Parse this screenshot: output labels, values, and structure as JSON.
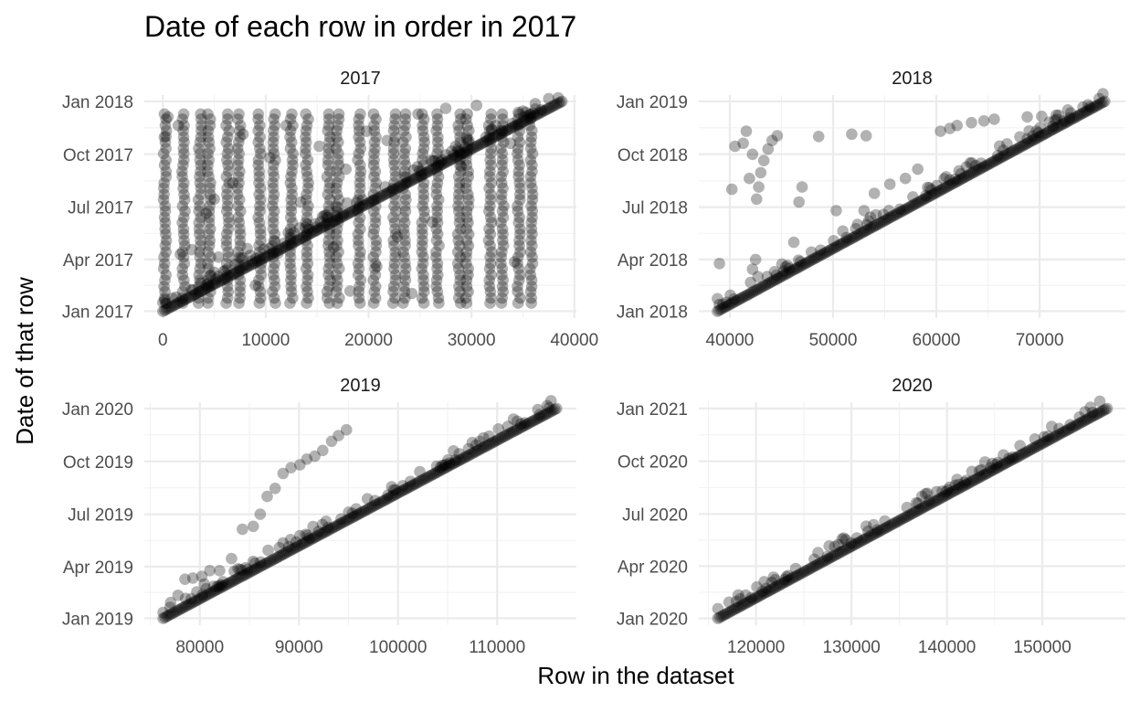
{
  "chart": {
    "title": "Date of each row in order in 2017",
    "xlabel": "Row in the dataset",
    "ylabel": "Date of that row"
  },
  "chart_data": [
    {
      "type": "scatter",
      "facet": "2017",
      "x_ticks": [
        0,
        10000,
        20000,
        30000,
        40000
      ],
      "x_tick_labels": [
        "0",
        "10000",
        "20000",
        "30000",
        "40000"
      ],
      "xlim": [
        -1800,
        40200
      ],
      "y_ticks": [
        "2017-01-01",
        "2017-04-01",
        "2017-07-01",
        "2017-10-01",
        "2018-01-01"
      ],
      "y_tick_labels": [
        "Jan 2017",
        "Apr 2017",
        "Jul 2017",
        "Oct 2017",
        "Jan 2018"
      ],
      "ylim": [
        "2016-12-20",
        "2018-01-12"
      ],
      "point_color": "#000000",
      "point_alpha": 0.3,
      "series": [
        {
          "x_start": 0,
          "y_start": "2017-01-01",
          "x_end": 38800,
          "y_end": "2018-01-01"
        }
      ],
      "column_stripes_x": [
        200,
        2000,
        3600,
        4500,
        6300,
        7400,
        9400,
        10800,
        12500,
        14000,
        16100,
        17000,
        19100,
        20600,
        22500,
        23500,
        25300,
        26700,
        28800,
        29600,
        31800,
        33000,
        34600,
        35800
      ],
      "column_top": "2017-12-01",
      "column_bottom": "2017-01-15",
      "outliers": [
        {
          "x": 300,
          "y": "2017-11-01"
        },
        {
          "x": 500,
          "y": "2017-12-05"
        },
        {
          "x": 1500,
          "y": "2017-11-20"
        },
        {
          "x": 1700,
          "y": "2017-04-10"
        },
        {
          "x": 2800,
          "y": "2017-04-18"
        },
        {
          "x": 4200,
          "y": "2017-06-20"
        },
        {
          "x": 5000,
          "y": "2017-07-15"
        },
        {
          "x": 5400,
          "y": "2017-04-05"
        },
        {
          "x": 7800,
          "y": "2017-11-05"
        },
        {
          "x": 8200,
          "y": "2017-04-20"
        },
        {
          "x": 10400,
          "y": "2017-09-25"
        },
        {
          "x": 11200,
          "y": "2017-04-12"
        },
        {
          "x": 12000,
          "y": "2017-11-20"
        },
        {
          "x": 13400,
          "y": "2017-07-10"
        },
        {
          "x": 15200,
          "y": "2017-10-15"
        },
        {
          "x": 16600,
          "y": "2017-04-22"
        },
        {
          "x": 17800,
          "y": "2017-09-05"
        },
        {
          "x": 18200,
          "y": "2017-02-05"
        },
        {
          "x": 19800,
          "y": "2017-11-10"
        },
        {
          "x": 20800,
          "y": "2017-03-20"
        },
        {
          "x": 21800,
          "y": "2017-10-25"
        },
        {
          "x": 22800,
          "y": "2017-05-10"
        },
        {
          "x": 24200,
          "y": "2017-02-01"
        },
        {
          "x": 24800,
          "y": "2017-12-10"
        },
        {
          "x": 26200,
          "y": "2017-06-05"
        },
        {
          "x": 27500,
          "y": "2017-12-20"
        },
        {
          "x": 29000,
          "y": "2017-09-10"
        },
        {
          "x": 30500,
          "y": "2017-12-25"
        },
        {
          "x": 32000,
          "y": "2017-11-12"
        },
        {
          "x": 33800,
          "y": "2017-10-20"
        },
        {
          "x": 35000,
          "y": "2017-12-15"
        },
        {
          "x": 36200,
          "y": "2017-12-28"
        },
        {
          "x": 34200,
          "y": "2017-03-28"
        },
        {
          "x": 6800,
          "y": "2017-08-12"
        },
        {
          "x": 9000,
          "y": "2017-02-15"
        },
        {
          "x": 14800,
          "y": "2017-06-02"
        }
      ]
    },
    {
      "type": "scatter",
      "facet": "2018",
      "x_ticks": [
        40000,
        50000,
        60000,
        70000
      ],
      "x_tick_labels": [
        "40000",
        "50000",
        "60000",
        "70000"
      ],
      "xlim": [
        37000,
        78300
      ],
      "y_ticks": [
        "2018-01-01",
        "2018-04-01",
        "2018-07-01",
        "2018-10-01",
        "2019-01-01"
      ],
      "y_tick_labels": [
        "Jan 2018",
        "Apr 2018",
        "Jul 2018",
        "Oct 2018",
        "Jan 2019"
      ],
      "ylim": [
        "2017-12-20",
        "2019-01-12"
      ],
      "point_color": "#000000",
      "point_alpha": 0.3,
      "series": [
        {
          "x_start": 38800,
          "y_start": "2018-01-01",
          "x_end": 76300,
          "y_end": "2019-01-01"
        }
      ],
      "outliers": [
        {
          "x": 39000,
          "y": "2018-03-25"
        },
        {
          "x": 40200,
          "y": "2018-08-01"
        },
        {
          "x": 40500,
          "y": "2018-10-15"
        },
        {
          "x": 41300,
          "y": "2018-10-20"
        },
        {
          "x": 41600,
          "y": "2018-11-10"
        },
        {
          "x": 41900,
          "y": "2018-08-20"
        },
        {
          "x": 42200,
          "y": "2018-10-01"
        },
        {
          "x": 42600,
          "y": "2018-07-15"
        },
        {
          "x": 42800,
          "y": "2018-08-05"
        },
        {
          "x": 42200,
          "y": "2018-03-15"
        },
        {
          "x": 42500,
          "y": "2018-04-01"
        },
        {
          "x": 43000,
          "y": "2018-08-30"
        },
        {
          "x": 43300,
          "y": "2018-09-20"
        },
        {
          "x": 43700,
          "y": "2018-10-10"
        },
        {
          "x": 44100,
          "y": "2018-10-25"
        },
        {
          "x": 44600,
          "y": "2018-11-02"
        },
        {
          "x": 46200,
          "y": "2018-05-01"
        },
        {
          "x": 46700,
          "y": "2018-07-10"
        },
        {
          "x": 47000,
          "y": "2018-08-05"
        },
        {
          "x": 48600,
          "y": "2018-11-01"
        },
        {
          "x": 50300,
          "y": "2018-06-25"
        },
        {
          "x": 51800,
          "y": "2018-11-05"
        },
        {
          "x": 53000,
          "y": "2018-06-25"
        },
        {
          "x": 53200,
          "y": "2018-11-02"
        },
        {
          "x": 54000,
          "y": "2018-07-25"
        },
        {
          "x": 55500,
          "y": "2018-08-10"
        },
        {
          "x": 57000,
          "y": "2018-08-20"
        },
        {
          "x": 58200,
          "y": "2018-09-05"
        },
        {
          "x": 60400,
          "y": "2018-11-10"
        },
        {
          "x": 61300,
          "y": "2018-11-15"
        },
        {
          "x": 62000,
          "y": "2018-11-20"
        },
        {
          "x": 63400,
          "y": "2018-11-25"
        },
        {
          "x": 64600,
          "y": "2018-11-28"
        },
        {
          "x": 65600,
          "y": "2018-12-01"
        },
        {
          "x": 68800,
          "y": "2018-12-05"
        },
        {
          "x": 70200,
          "y": "2018-12-06"
        },
        {
          "x": 71600,
          "y": "2018-12-08"
        },
        {
          "x": 73000,
          "y": "2018-12-12"
        },
        {
          "x": 74200,
          "y": "2018-12-22"
        }
      ]
    },
    {
      "type": "scatter",
      "facet": "2019",
      "x_ticks": [
        80000,
        90000,
        100000,
        110000
      ],
      "x_tick_labels": [
        "80000",
        "90000",
        "100000",
        "110000"
      ],
      "xlim": [
        74400,
        118000
      ],
      "y_ticks": [
        "2019-01-01",
        "2019-04-01",
        "2019-07-01",
        "2019-10-01",
        "2020-01-01"
      ],
      "y_tick_labels": [
        "Jan 2019",
        "Apr 2019",
        "Jul 2019",
        "Oct 2019",
        "Jan 2020"
      ],
      "ylim": [
        "2018-12-20",
        "2020-01-12"
      ],
      "point_color": "#000000",
      "point_alpha": 0.3,
      "series": [
        {
          "x_start": 76300,
          "y_start": "2019-01-01",
          "x_end": 116000,
          "y_end": "2020-01-01"
        }
      ],
      "outliers": [
        {
          "x": 77000,
          "y": "2019-01-20"
        },
        {
          "x": 77800,
          "y": "2019-02-10"
        },
        {
          "x": 78500,
          "y": "2019-03-10"
        },
        {
          "x": 79300,
          "y": "2019-03-12"
        },
        {
          "x": 80200,
          "y": "2019-03-15"
        },
        {
          "x": 81000,
          "y": "2019-03-25"
        },
        {
          "x": 82000,
          "y": "2019-03-25"
        },
        {
          "x": 83200,
          "y": "2019-04-15"
        },
        {
          "x": 84300,
          "y": "2019-06-05"
        },
        {
          "x": 85400,
          "y": "2019-06-10"
        },
        {
          "x": 86100,
          "y": "2019-07-01"
        },
        {
          "x": 86800,
          "y": "2019-08-01"
        },
        {
          "x": 87600,
          "y": "2019-08-15"
        },
        {
          "x": 88400,
          "y": "2019-09-10"
        },
        {
          "x": 89200,
          "y": "2019-09-20"
        },
        {
          "x": 90100,
          "y": "2019-09-25"
        },
        {
          "x": 90800,
          "y": "2019-10-05"
        },
        {
          "x": 91600,
          "y": "2019-10-10"
        },
        {
          "x": 92400,
          "y": "2019-10-20"
        },
        {
          "x": 93300,
          "y": "2019-11-05"
        },
        {
          "x": 94000,
          "y": "2019-11-15"
        },
        {
          "x": 94800,
          "y": "2019-11-25"
        }
      ]
    },
    {
      "type": "scatter",
      "facet": "2020",
      "x_ticks": [
        120000,
        130000,
        140000,
        150000
      ],
      "x_tick_labels": [
        "120000",
        "130000",
        "140000",
        "150000"
      ],
      "xlim": [
        114000,
        158700
      ],
      "y_ticks": [
        "2020-01-01",
        "2020-04-01",
        "2020-07-01",
        "2020-10-01",
        "2021-01-01"
      ],
      "y_tick_labels": [
        "Jan 2020",
        "Apr 2020",
        "Jul 2020",
        "Oct 2020",
        "Jan 2021"
      ],
      "ylim": [
        "2019-12-20",
        "2021-01-12"
      ],
      "point_color": "#000000",
      "point_alpha": 0.3,
      "series": [
        {
          "x_start": 116000,
          "y_start": "2020-01-01",
          "x_end": 156800,
          "y_end": "2021-01-01"
        }
      ],
      "outliers": []
    }
  ]
}
